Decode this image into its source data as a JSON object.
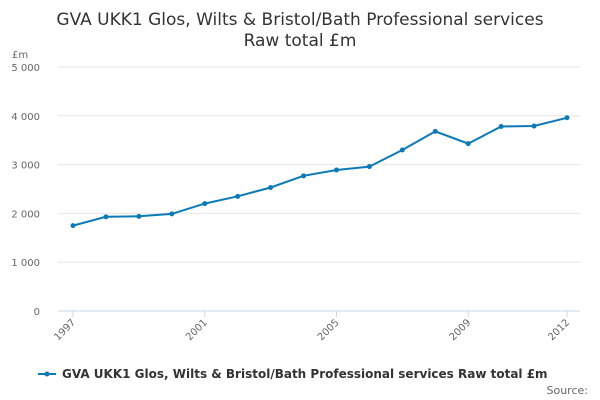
{
  "chart_data": {
    "type": "line",
    "title": "GVA UKK1 Glos, Wilts & Bristol/Bath Professional services",
    "subtitle": "Raw total £m",
    "ylabel": "£m",
    "xlabel": "",
    "ylim": [
      0,
      5000
    ],
    "yticks": [
      0,
      1000,
      2000,
      3000,
      4000,
      5000
    ],
    "ytick_labels": [
      "0",
      "1 000",
      "2 000",
      "3 000",
      "4 000",
      "5 000"
    ],
    "xticks": [
      1997,
      2001,
      2005,
      2009,
      2012
    ],
    "xtick_labels": [
      "1997",
      "2001",
      "2005",
      "2009",
      "2012"
    ],
    "x": [
      1997,
      1998,
      1999,
      2000,
      2001,
      2002,
      2003,
      2004,
      2005,
      2006,
      2007,
      2008,
      2009,
      2010,
      2011,
      2012
    ],
    "series": [
      {
        "name": "GVA UKK1 Glos, Wilts & Bristol/Bath Professional services Raw total £m",
        "color": "#0d7ab8",
        "values": [
          1750,
          1930,
          1940,
          1990,
          2200,
          2350,
          2530,
          2770,
          2890,
          2960,
          3300,
          3680,
          3430,
          3780,
          3790,
          3960
        ]
      }
    ],
    "grid": true,
    "legend_position": "bottom-center"
  },
  "footer": {
    "source_label": "Source:"
  }
}
